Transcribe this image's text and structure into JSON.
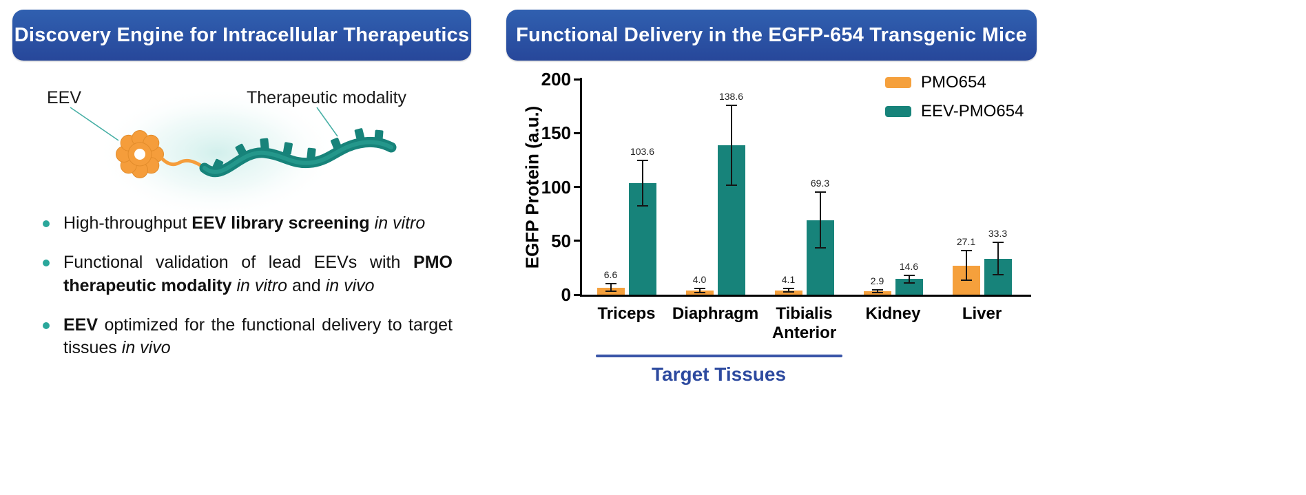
{
  "colors": {
    "banner_blue_top": "#3060b0",
    "banner_blue_bottom": "#27479a",
    "teal": "#17837A",
    "orange": "#F5A03C",
    "bullet_dot_teal": "#2AA79B",
    "annotation_blue": "#3a55a8",
    "annotation_text_blue": "#2d4a9f"
  },
  "left_panel": {
    "title": "Discovery Engine for Intracellular Therapeutics",
    "diagram": {
      "eev_label": "EEV",
      "modality_label": "Therapeutic modality"
    },
    "bullets": [
      {
        "segments": [
          {
            "text": "High-throughput ",
            "style": "normal"
          },
          {
            "text": "EEV library screening",
            "style": "bold"
          },
          {
            "text": " ",
            "style": "normal"
          },
          {
            "text": "in vitro",
            "style": "italic"
          }
        ]
      },
      {
        "segments": [
          {
            "text": "Functional validation of lead EEVs with ",
            "style": "normal"
          },
          {
            "text": "PMO therapeutic modality",
            "style": "bold"
          },
          {
            "text": " ",
            "style": "normal"
          },
          {
            "text": "in vitro",
            "style": "italic"
          },
          {
            "text": " and ",
            "style": "normal"
          },
          {
            "text": "in vivo",
            "style": "italic"
          }
        ]
      },
      {
        "segments": [
          {
            "text": "EEV",
            "style": "bold"
          },
          {
            "text": " optimized for the functional delivery to target tissues ",
            "style": "normal"
          },
          {
            "text": "in vivo",
            "style": "italic"
          }
        ]
      }
    ]
  },
  "right_panel": {
    "title": "Functional Delivery in the EGFP-654 Transgenic Mice"
  },
  "chart_data": {
    "type": "bar",
    "title": "Functional Delivery in the EGFP-654 Transgenic Mice",
    "categories": [
      "Triceps",
      "Diaphragm",
      "Tibialis Anterior",
      "Kidney",
      "Liver"
    ],
    "series": [
      {
        "name": "PMO654",
        "color": "#F5A03C",
        "values": [
          6.6,
          4.0,
          4.1,
          2.9,
          27.1
        ],
        "errors": [
          3.5,
          1.8,
          1.8,
          1.3,
          14.0
        ]
      },
      {
        "name": "EEV-PMO654",
        "color": "#17837A",
        "values": [
          103.6,
          138.6,
          69.3,
          14.6,
          33.3
        ],
        "errors": [
          21.0,
          37.0,
          26.0,
          3.5,
          15.0
        ]
      }
    ],
    "xlabel": "",
    "ylabel": "EGFP Protein (a.u.)",
    "ylim": [
      0,
      200
    ],
    "yticks": [
      0,
      50,
      100,
      150,
      200
    ],
    "grid": false,
    "legend_position": "top-right",
    "bar_value_labels": true,
    "annotation": {
      "label": "Target Tissues",
      "span_categories": [
        "Triceps",
        "Diaphragm",
        "Tibialis Anterior"
      ]
    }
  }
}
